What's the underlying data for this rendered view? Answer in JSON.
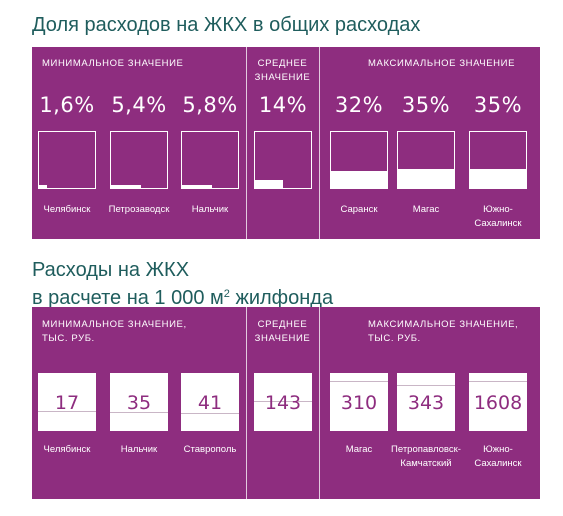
{
  "titles": {
    "chart1": "Доля расходов на ЖКХ в общих расходах",
    "chart2_line1": "Расходы на ЖКХ",
    "chart2_line2": "в расчете на 1 000 м",
    "chart2_sup": "2",
    "chart2_tail": " жилфонда"
  },
  "chart_data": [
    {
      "type": "table",
      "title": "Доля расходов на ЖКХ в общих расходах",
      "groups": [
        "МИНИМАЛЬНОЕ ЗНАЧЕНИЕ",
        "СРЕДНЕЕ ЗНАЧЕНИЕ",
        "МАКСИМАЛЬНОЕ ЗНАЧЕНИЕ"
      ],
      "categories": [
        "Челябинск",
        "Петрозаводск",
        "Нальчик",
        "",
        "Саранск",
        "Магас",
        "Южно-Сахалинск"
      ],
      "labels": [
        "1,6%",
        "5,4%",
        "5,8%",
        "14%",
        "32%",
        "35%",
        "35%"
      ],
      "values": [
        1.6,
        5.4,
        5.8,
        14,
        32,
        35,
        35
      ],
      "unit": "%"
    },
    {
      "type": "table",
      "title": "Расходы на ЖКХ в расчете на 1 000 м2 жилфонда",
      "groups": [
        "МИНИМАЛЬНОЕ ЗНАЧЕНИЕ, ТЫС. РУБ.",
        "СРЕДНЕЕ ЗНАЧЕНИЕ",
        "МАКСИМАЛЬНОЕ ЗНАЧЕНИЕ, ТЫС. РУБ."
      ],
      "categories": [
        "Челябинск",
        "Нальчик",
        "Ставрополь",
        "",
        "Магас",
        "Петропавловск-Камчатский",
        "Южно-Сахалинск"
      ],
      "labels": [
        "17",
        "35",
        "41",
        "143",
        "310",
        "343",
        "1608"
      ],
      "values": [
        17,
        35,
        41,
        143,
        310,
        343,
        1608
      ],
      "unit": "тыс. руб."
    }
  ],
  "panel1": {
    "hdr_min": "МИНИМАЛЬНОЕ ЗНАЧЕНИЕ",
    "hdr_avg_1": "СРЕДНЕЕ",
    "hdr_avg_2": "ЗНАЧЕНИЕ",
    "hdr_max": "МАКСИМАЛЬНОЕ ЗНАЧЕНИЕ",
    "labels": [
      "1,6%",
      "5,4%",
      "5,8%",
      "14%",
      "32%",
      "35%",
      "35%"
    ],
    "cities": [
      [
        "Челябинск"
      ],
      [
        "Петрозаводск"
      ],
      [
        "Нальчик"
      ],
      [
        ""
      ],
      [
        "Саранск"
      ],
      [
        "Магас"
      ],
      [
        "Южно-",
        "Сахалинск"
      ]
    ]
  },
  "panel2": {
    "hdr_min_1": "МИНИМАЛЬНОЕ ЗНАЧЕНИЕ,",
    "hdr_min_2": "ТЫС. РУБ.",
    "hdr_avg_1": "СРЕДНЕЕ",
    "hdr_avg_2": "ЗНАЧЕНИЕ",
    "hdr_max_1": "МАКСИМАЛЬНОЕ ЗНАЧЕНИЕ,",
    "hdr_max_2": "ТЫС. РУБ.",
    "labels": [
      "17",
      "35",
      "41",
      "143",
      "310",
      "343",
      "1608"
    ],
    "cities": [
      [
        "Челябинск"
      ],
      [
        "Нальчик"
      ],
      [
        "Ставрополь"
      ],
      [
        ""
      ],
      [
        "Магас"
      ],
      [
        "Петропавловск-",
        "Камчатский"
      ],
      [
        "Южно-",
        "Сахалинск"
      ]
    ]
  },
  "colors": {
    "panel": "#8e2d7f",
    "title": "#1f5d5d",
    "box": "#ffffff"
  }
}
